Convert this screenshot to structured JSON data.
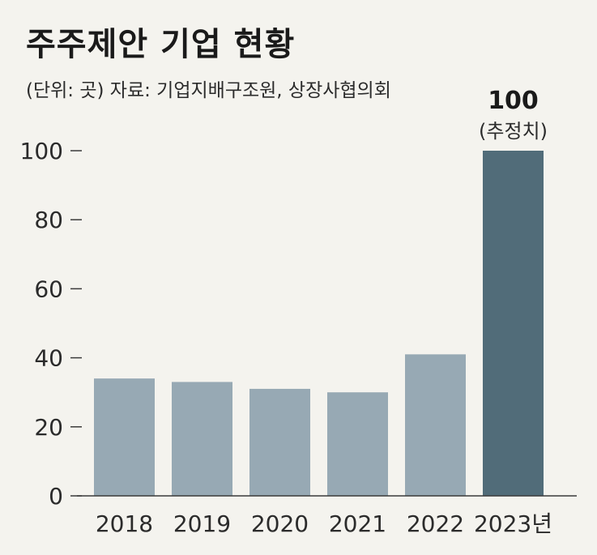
{
  "title": "주주제안 기업 현황",
  "source_note": "(단위: 곳) 자료: 기업지배구조원, 상장사협의회",
  "colors": {
    "background": "#f4f3ee",
    "bar_default": "#97a9b4",
    "bar_highlight": "#516c79",
    "axis": "#3a3a3a"
  },
  "chart_data": {
    "type": "bar",
    "categories": [
      "2018",
      "2019",
      "2020",
      "2021",
      "2022",
      "2023년"
    ],
    "values": [
      34,
      33,
      31,
      30,
      41,
      100
    ],
    "highlight_index": 5,
    "ylim": [
      0,
      100
    ],
    "yticks": [
      0,
      20,
      40,
      60,
      80,
      100
    ],
    "grid": false,
    "xlabel": "",
    "ylabel": "",
    "annotation": {
      "category": "2023년",
      "value_label": "100",
      "note": "(추정치)"
    }
  }
}
